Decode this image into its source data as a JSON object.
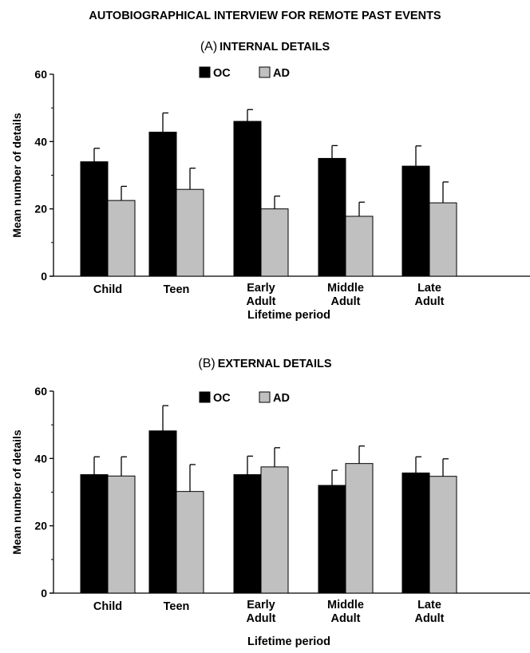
{
  "figure_title": "AUTOBIOGRAPHICAL INTERVIEW FOR REMOTE PAST EVENTS",
  "colors": {
    "OC": "#000000",
    "AD": "#c0c0c0"
  },
  "chart_data": [
    {
      "type": "bar",
      "panel_label": "(A)",
      "title": "INTERNAL DETAILS",
      "xlabel": "Lifetime period",
      "ylabel": "Mean number of details",
      "ylim": [
        0,
        60
      ],
      "yticks": [
        "0",
        "20",
        "40",
        "60"
      ],
      "legend_placement": "top-center",
      "categories": [
        [
          "Child"
        ],
        [
          "Teen"
        ],
        [
          "Early",
          "Adult"
        ],
        [
          "Middle",
          "Adult"
        ],
        [
          "Late",
          "Adult"
        ]
      ],
      "series": [
        {
          "name": "OC",
          "values": [
            34,
            42.8,
            46,
            35,
            32.7
          ],
          "errors": [
            4,
            5.7,
            3.5,
            3.8,
            6
          ]
        },
        {
          "name": "AD",
          "values": [
            22.5,
            25.8,
            20,
            17.8,
            21.8
          ],
          "errors": [
            4.2,
            6.3,
            3.8,
            4.2,
            6.2
          ]
        }
      ]
    },
    {
      "type": "bar",
      "panel_label": "(B)",
      "title": "EXTERNAL DETAILS",
      "xlabel": "Lifetime period",
      "ylabel": "Mean number of details",
      "ylim": [
        0,
        60
      ],
      "yticks": [
        "0",
        "20",
        "40",
        "60"
      ],
      "legend_placement": "top-center",
      "categories": [
        [
          "Child"
        ],
        [
          "Teen"
        ],
        [
          "Early",
          "Adult"
        ],
        [
          "Middle",
          "Adult"
        ],
        [
          "Late",
          "Adult"
        ]
      ],
      "series": [
        {
          "name": "OC",
          "values": [
            35.2,
            48.2,
            35.2,
            32,
            35.7
          ],
          "errors": [
            5.3,
            7.5,
            5.5,
            4.5,
            4.8
          ]
        },
        {
          "name": "AD",
          "values": [
            34.8,
            30.2,
            37.5,
            38.5,
            34.7
          ],
          "errors": [
            5.7,
            8,
            5.7,
            5.2,
            5.2
          ]
        }
      ]
    }
  ]
}
